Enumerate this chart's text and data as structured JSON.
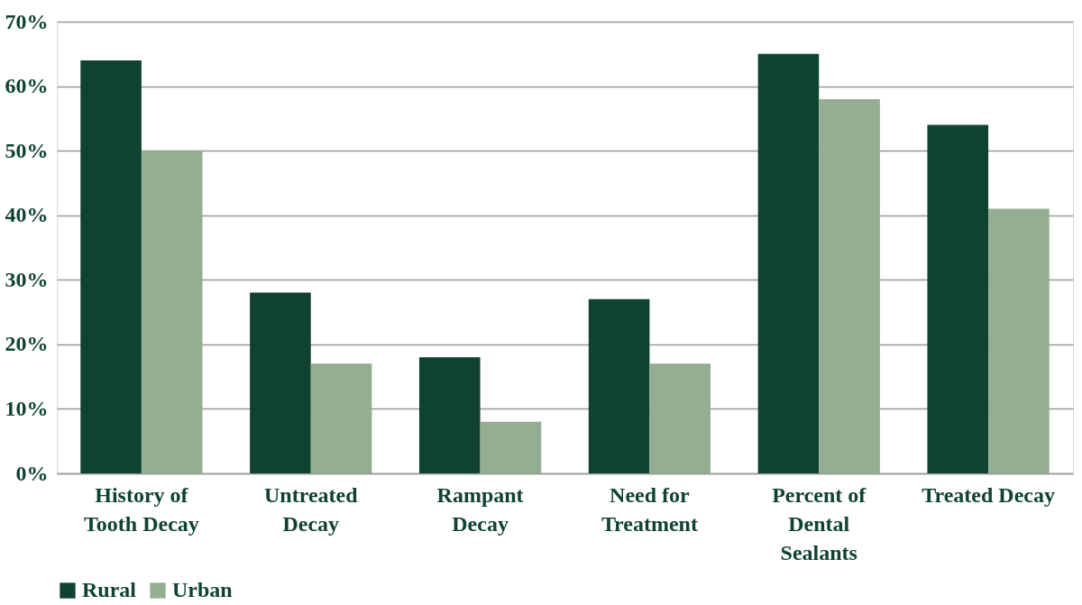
{
  "chart_data": {
    "type": "bar",
    "categories": [
      "History of\nTooth Decay",
      "Untreated\nDecay",
      "Rampant\nDecay",
      "Need for\nTreatment",
      "Percent of\nDental\nSealants",
      "Treated Decay"
    ],
    "series": [
      {
        "name": "Rural",
        "color": "#10432f",
        "values": [
          64,
          28,
          18,
          27,
          65,
          54
        ]
      },
      {
        "name": "Urban",
        "color": "#95ad92",
        "values": [
          50,
          17,
          8,
          17,
          58,
          41
        ]
      }
    ],
    "ylim": [
      0,
      70
    ],
    "yticks": [
      {
        "value": 0,
        "label": "0%"
      },
      {
        "value": 10,
        "label": "10%"
      },
      {
        "value": 20,
        "label": "20%"
      },
      {
        "value": 30,
        "label": "30%"
      },
      {
        "value": 40,
        "label": "40%"
      },
      {
        "value": 50,
        "label": "50%"
      },
      {
        "value": 60,
        "label": "60%"
      },
      {
        "value": 70,
        "label": "70%"
      }
    ],
    "grid": "y",
    "legend": "bottom"
  }
}
